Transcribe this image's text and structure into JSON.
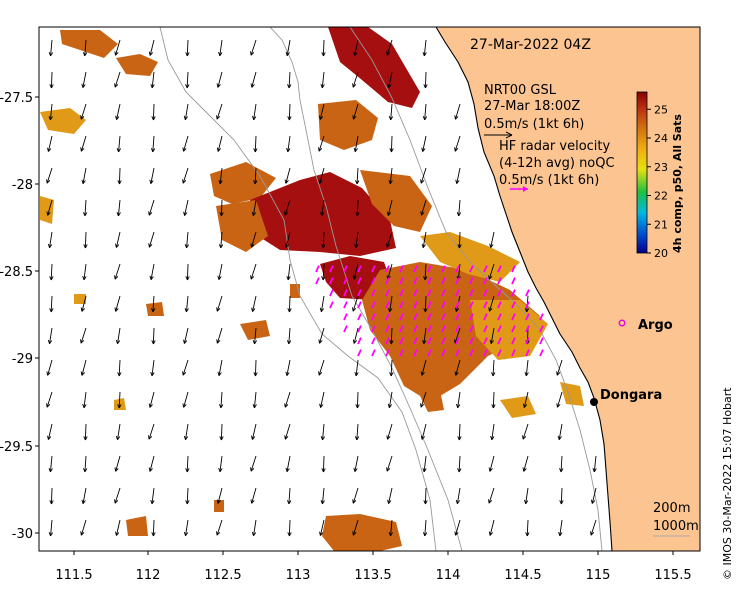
{
  "title_date": "27-Mar-2022 04Z",
  "model": {
    "name": "NRT00 GSL",
    "time": "27-Mar 18:00Z",
    "scale": "0.5m/s (1kt 6h)"
  },
  "radar": {
    "line1": "HF radar velocity",
    "line2": "(4-12h avg) noQC",
    "scale": "0.5m/s (1kt 6h)"
  },
  "colorbar": {
    "label": "4h comp, p50, All Sats",
    "ticks": [
      "25",
      "24",
      "23",
      "22",
      "21",
      "20"
    ],
    "min": 20,
    "max": 25.6
  },
  "axes": {
    "x_ticks": [
      "111.5",
      "112",
      "112.5",
      "113",
      "113.5",
      "114",
      "114.5",
      "115",
      "115.5"
    ],
    "y_ticks": [
      "-27.5",
      "-28",
      "-28.5",
      "-29",
      "-29.5",
      "-30"
    ]
  },
  "places": {
    "argo": "Argo",
    "dongara": "Dongara"
  },
  "contours": {
    "c200": "200m",
    "c1000": "1000m"
  },
  "credit": "© IMOS 30-Mar-2022 15:07 Hobart",
  "colors": {
    "land": "#fbc491",
    "sst_hot": "#a50f0f",
    "sst_warm": "#c86414",
    "sst_mid": "#e09a18",
    "radar_arrow": "#ff00ff",
    "argo": "#e000e0"
  }
}
